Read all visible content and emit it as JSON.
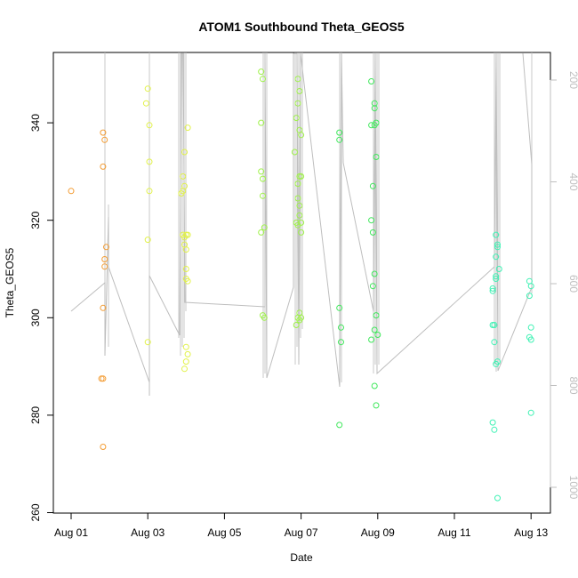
{
  "chart_data": {
    "type": "scatter",
    "title": "ATOM1 Southbound Theta_GEOS5",
    "xlabel": "Date",
    "ylabel": "Theta_GEOS5",
    "x_ticks": [
      "Aug 01",
      "Aug 03",
      "Aug 05",
      "Aug 07",
      "Aug 09",
      "Aug 11",
      "Aug 13"
    ],
    "xlim_days": [
      0.75,
      13.5
    ],
    "ylim": [
      260,
      355
    ],
    "y_ticks": [
      260,
      280,
      300,
      320,
      340
    ],
    "y2_ticks": [
      200,
      400,
      600,
      800,
      1000
    ],
    "y2lim": [
      1033,
      131
    ],
    "y2_direction": "inverted",
    "grid": false,
    "legend": "none",
    "colors": {
      "orange": "#f39c33",
      "yellow": "#e2f24a",
      "lime": "#9ff24a",
      "green": "#3fe85b",
      "aqua": "#3ff2b4",
      "line": "#bebebe"
    },
    "series": [
      {
        "color": "orange",
        "points": [
          {
            "x": "Aug 01 00:00",
            "y": 326
          },
          {
            "x": "Aug 01 20:00",
            "y": 338
          },
          {
            "x": "Aug 01 21:00",
            "y": 336.5
          },
          {
            "x": "Aug 01 20:00",
            "y": 331
          },
          {
            "x": "Aug 01 22:00",
            "y": 314.5
          },
          {
            "x": "Aug 01 21:00",
            "y": 312
          },
          {
            "x": "Aug 01 21:00",
            "y": 310.5
          },
          {
            "x": "Aug 01 20:00",
            "y": 302
          },
          {
            "x": "Aug 01 19:00",
            "y": 287.5
          },
          {
            "x": "Aug 01 20:00",
            "y": 287.5
          },
          {
            "x": "Aug 01 20:00",
            "y": 273.5
          }
        ]
      },
      {
        "color": "yellow",
        "points": [
          {
            "x": "Aug 03 00:00",
            "y": 347
          },
          {
            "x": "Aug 02 23:00",
            "y": 344
          },
          {
            "x": "Aug 03 01:00",
            "y": 339.5
          },
          {
            "x": "Aug 03 01:00",
            "y": 332
          },
          {
            "x": "Aug 03 01:00",
            "y": 326
          },
          {
            "x": "Aug 03 00:00",
            "y": 316
          },
          {
            "x": "Aug 03 00:00",
            "y": 295
          },
          {
            "x": "Aug 03 22:00",
            "y": 329
          },
          {
            "x": "Aug 03 23:00",
            "y": 334
          },
          {
            "x": "Aug 04 01:00",
            "y": 339
          },
          {
            "x": "Aug 03 22:00",
            "y": 326
          },
          {
            "x": "Aug 03 23:00",
            "y": 327
          },
          {
            "x": "Aug 03 21:00",
            "y": 325.5
          },
          {
            "x": "Aug 03 22:00",
            "y": 317
          },
          {
            "x": "Aug 03 23:00",
            "y": 316.5
          },
          {
            "x": "Aug 04 00:00",
            "y": 317
          },
          {
            "x": "Aug 04 01:00",
            "y": 317
          },
          {
            "x": "Aug 03 23:00",
            "y": 315
          },
          {
            "x": "Aug 04 00:00",
            "y": 314
          },
          {
            "x": "Aug 04 00:00",
            "y": 310
          },
          {
            "x": "Aug 04 00:00",
            "y": 308
          },
          {
            "x": "Aug 04 01:00",
            "y": 307.5
          },
          {
            "x": "Aug 04 00:00",
            "y": 294
          },
          {
            "x": "Aug 04 01:00",
            "y": 292.5
          },
          {
            "x": "Aug 04 00:00",
            "y": 291
          },
          {
            "x": "Aug 03 23:00",
            "y": 289.5
          }
        ]
      },
      {
        "color": "lime",
        "points": [
          {
            "x": "Aug 05 23:00",
            "y": 350.5
          },
          {
            "x": "Aug 06 00:00",
            "y": 349
          },
          {
            "x": "Aug 05 23:00",
            "y": 340
          },
          {
            "x": "Aug 05 23:00",
            "y": 330
          },
          {
            "x": "Aug 06 00:00",
            "y": 328.5
          },
          {
            "x": "Aug 06 00:00",
            "y": 325
          },
          {
            "x": "Aug 06 01:00",
            "y": 318.5
          },
          {
            "x": "Aug 05 23:00",
            "y": 317.5
          },
          {
            "x": "Aug 06 00:00",
            "y": 300.5
          },
          {
            "x": "Aug 06 01:00",
            "y": 300
          },
          {
            "x": "Aug 06 22:00",
            "y": 349
          },
          {
            "x": "Aug 06 23:00",
            "y": 346.5
          },
          {
            "x": "Aug 06 22:00",
            "y": 344
          },
          {
            "x": "Aug 06 21:00",
            "y": 341
          },
          {
            "x": "Aug 06 23:00",
            "y": 338.5
          },
          {
            "x": "Aug 07 00:00",
            "y": 337.5
          },
          {
            "x": "Aug 06 20:00",
            "y": 334
          },
          {
            "x": "Aug 06 23:00",
            "y": 329
          },
          {
            "x": "Aug 07 00:00",
            "y": 329
          },
          {
            "x": "Aug 06 22:00",
            "y": 327.5
          },
          {
            "x": "Aug 06 22:00",
            "y": 324.5
          },
          {
            "x": "Aug 06 23:00",
            "y": 323
          },
          {
            "x": "Aug 06 23:00",
            "y": 321
          },
          {
            "x": "Aug 06 21:00",
            "y": 319.5
          },
          {
            "x": "Aug 06 22:00",
            "y": 319
          },
          {
            "x": "Aug 07 00:00",
            "y": 319.5
          },
          {
            "x": "Aug 07 00:00",
            "y": 317.5
          },
          {
            "x": "Aug 06 23:00",
            "y": 301
          },
          {
            "x": "Aug 06 22:00",
            "y": 300
          },
          {
            "x": "Aug 07 00:00",
            "y": 300
          },
          {
            "x": "Aug 06 21:00",
            "y": 298.5
          },
          {
            "x": "Aug 06 23:00",
            "y": 299.5
          }
        ]
      },
      {
        "color": "green",
        "points": [
          {
            "x": "Aug 08 00:00",
            "y": 338
          },
          {
            "x": "Aug 08 00:00",
            "y": 336.5
          },
          {
            "x": "Aug 08 00:00",
            "y": 302
          },
          {
            "x": "Aug 08 01:00",
            "y": 295
          },
          {
            "x": "Aug 08 01:00",
            "y": 298
          },
          {
            "x": "Aug 08 00:00",
            "y": 278
          },
          {
            "x": "Aug 08 20:00",
            "y": 348.5
          },
          {
            "x": "Aug 08 22:00",
            "y": 344
          },
          {
            "x": "Aug 08 22:00",
            "y": 343
          },
          {
            "x": "Aug 08 20:00",
            "y": 339.5
          },
          {
            "x": "Aug 08 23:00",
            "y": 340
          },
          {
            "x": "Aug 08 22:00",
            "y": 339.5
          },
          {
            "x": "Aug 08 23:00",
            "y": 333
          },
          {
            "x": "Aug 08 21:00",
            "y": 327
          },
          {
            "x": "Aug 08 20:00",
            "y": 320
          },
          {
            "x": "Aug 08 21:00",
            "y": 317.5
          },
          {
            "x": "Aug 08 22:00",
            "y": 309
          },
          {
            "x": "Aug 08 21:00",
            "y": 306.5
          },
          {
            "x": "Aug 08 23:00",
            "y": 300.5
          },
          {
            "x": "Aug 08 22:00",
            "y": 297.5
          },
          {
            "x": "Aug 09 00:00",
            "y": 296.5
          },
          {
            "x": "Aug 08 20:00",
            "y": 295.5
          },
          {
            "x": "Aug 08 22:00",
            "y": 286
          },
          {
            "x": "Aug 08 23:00",
            "y": 282
          }
        ]
      },
      {
        "color": "aqua",
        "points": [
          {
            "x": "Aug 12 02:00",
            "y": 317
          },
          {
            "x": "Aug 12 03:00",
            "y": 315
          },
          {
            "x": "Aug 12 03:00",
            "y": 314.5
          },
          {
            "x": "Aug 12 02:00",
            "y": 312.5
          },
          {
            "x": "Aug 12 04:00",
            "y": 310
          },
          {
            "x": "Aug 12 02:00",
            "y": 308.5
          },
          {
            "x": "Aug 12 02:00",
            "y": 308
          },
          {
            "x": "Aug 12 00:00",
            "y": 306
          },
          {
            "x": "Aug 12 00:00",
            "y": 305.5
          },
          {
            "x": "Aug 12 00:00",
            "y": 298.5
          },
          {
            "x": "Aug 12 01:00",
            "y": 298.5
          },
          {
            "x": "Aug 12 01:00",
            "y": 295
          },
          {
            "x": "Aug 12 03:00",
            "y": 291
          },
          {
            "x": "Aug 12 02:00",
            "y": 290.5
          },
          {
            "x": "Aug 12 00:00",
            "y": 278.5
          },
          {
            "x": "Aug 12 01:00",
            "y": 277
          },
          {
            "x": "Aug 12 03:00",
            "y": 263
          },
          {
            "x": "Aug 12 23:00",
            "y": 307.5
          },
          {
            "x": "Aug 13 00:00",
            "y": 306.5
          },
          {
            "x": "Aug 12 23:00",
            "y": 304.5
          },
          {
            "x": "Aug 13 00:00",
            "y": 298
          },
          {
            "x": "Aug 12 23:00",
            "y": 296
          },
          {
            "x": "Aug 13 00:00",
            "y": 295.5
          },
          {
            "x": "Aug 13 00:00",
            "y": 280.5
          }
        ]
      }
    ],
    "profile_lines": {
      "color": "line",
      "x_order": "Aug 01 00:00 to Aug 13 00:00",
      "note_values_y2": "vertical pressure-scale profiles"
    }
  }
}
